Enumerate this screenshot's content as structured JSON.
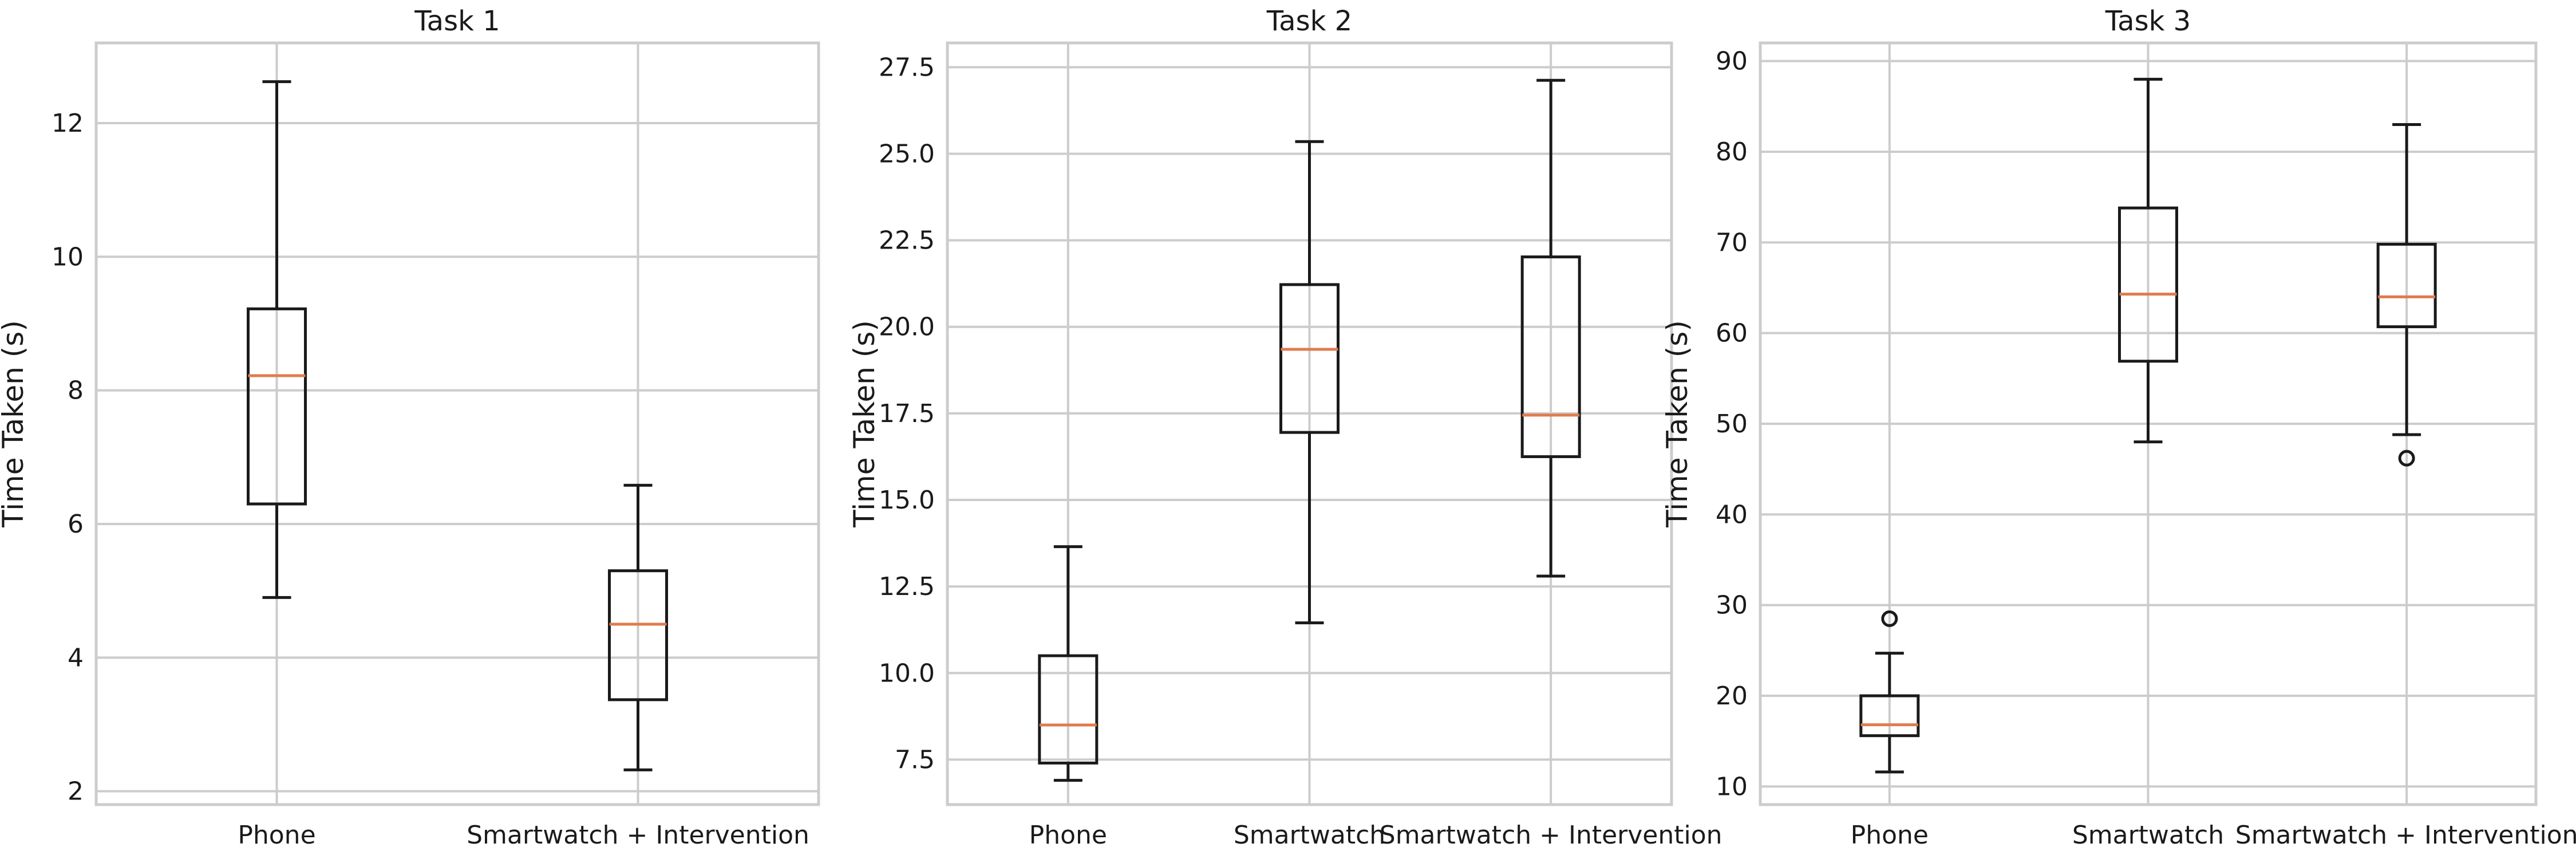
{
  "chart_data": [
    {
      "type": "box",
      "title": "Task 1",
      "ylabel": "Time Taken (s)",
      "xlabel": "",
      "ylim": [
        1.8,
        13.2
      ],
      "yticks": [
        2,
        4,
        6,
        8,
        10,
        12
      ],
      "ytick_labels": [
        "2",
        "4",
        "6",
        "8",
        "10",
        "12"
      ],
      "grid": true,
      "categories": [
        "Phone",
        "Smartwatch + Intervention"
      ],
      "boxes": [
        {
          "whisker_low": 4.9,
          "q1": 6.3,
          "median": 8.22,
          "q3": 9.22,
          "whisker_high": 12.62,
          "outliers": []
        },
        {
          "whisker_low": 2.32,
          "q1": 3.37,
          "median": 4.5,
          "q3": 5.3,
          "whisker_high": 6.58,
          "outliers": []
        }
      ]
    },
    {
      "type": "box",
      "title": "Task 2",
      "ylabel": "Time Taken (s)",
      "xlabel": "",
      "ylim": [
        6.2,
        28.2
      ],
      "yticks": [
        7.5,
        10.0,
        12.5,
        15.0,
        17.5,
        20.0,
        22.5,
        25.0,
        27.5
      ],
      "ytick_labels": [
        "7.5",
        "10.0",
        "12.5",
        "15.0",
        "17.5",
        "20.0",
        "22.5",
        "25.0",
        "27.5"
      ],
      "grid": true,
      "categories": [
        "Phone",
        "Smartwatch",
        "Smartwatch + Intervention"
      ],
      "boxes": [
        {
          "whisker_low": 6.9,
          "q1": 7.4,
          "median": 8.5,
          "q3": 10.5,
          "whisker_high": 13.65,
          "outliers": []
        },
        {
          "whisker_low": 11.45,
          "q1": 16.95,
          "median": 19.35,
          "q3": 21.22,
          "whisker_high": 25.35,
          "outliers": []
        },
        {
          "whisker_low": 12.8,
          "q1": 16.25,
          "median": 17.45,
          "q3": 22.02,
          "whisker_high": 27.12,
          "outliers": []
        }
      ]
    },
    {
      "type": "box",
      "title": "Task 3",
      "ylabel": "Time Taken (s)",
      "xlabel": "",
      "ylim": [
        8,
        92
      ],
      "yticks": [
        10,
        20,
        30,
        40,
        50,
        60,
        70,
        80,
        90
      ],
      "ytick_labels": [
        "10",
        "20",
        "30",
        "40",
        "50",
        "60",
        "70",
        "80",
        "90"
      ],
      "grid": true,
      "categories": [
        "Phone",
        "Smartwatch",
        "Smartwatch + Intervention"
      ],
      "boxes": [
        {
          "whisker_low": 11.6,
          "q1": 15.6,
          "median": 16.8,
          "q3": 20.0,
          "whisker_high": 24.7,
          "outliers": [
            28.5
          ]
        },
        {
          "whisker_low": 48.0,
          "q1": 56.9,
          "median": 64.3,
          "q3": 73.8,
          "whisker_high": 88.0,
          "outliers": []
        },
        {
          "whisker_low": 48.8,
          "q1": 60.7,
          "median": 64.0,
          "q3": 69.8,
          "whisker_high": 83.0,
          "outliers": [
            46.2
          ]
        }
      ]
    }
  ],
  "colors": {
    "box_line": "#1a1a1a",
    "median_line": "#e07b4c",
    "grid": "#cccccc",
    "frame": "#cccccc"
  }
}
